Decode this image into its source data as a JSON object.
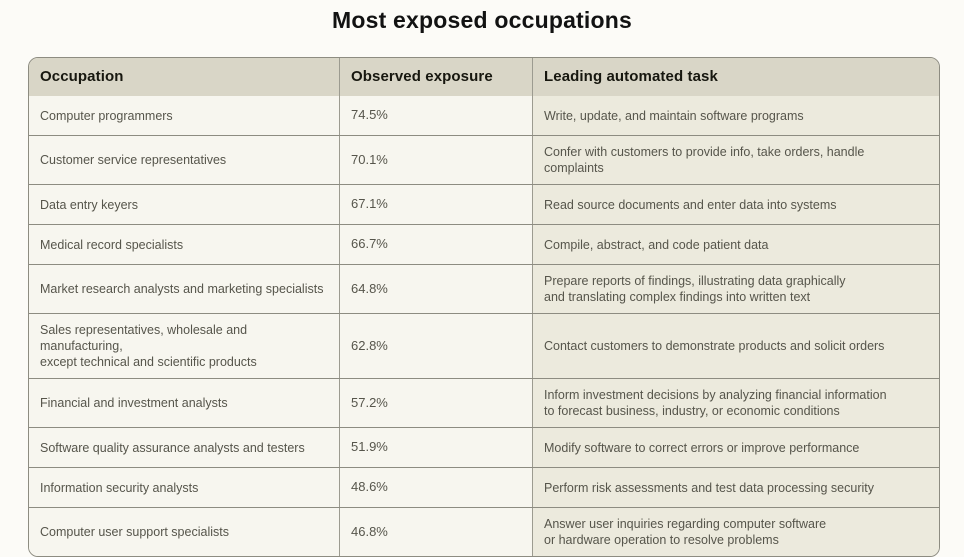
{
  "title": "Most exposed occupations",
  "colors": {
    "page_bg": "#fcfbf7",
    "header_bg": "#d9d6c7",
    "row_bg": "#f7f6ef",
    "task_column_bg": "#eceadd",
    "border": "#8d8c81",
    "body_text": "#56554b",
    "header_text": "#17170f"
  },
  "table": {
    "headers": {
      "occupation": "Occupation",
      "exposure": "Observed exposure",
      "task": "Leading automated task"
    },
    "rows": [
      {
        "occupation": "Computer programmers",
        "exposure": "74.5%",
        "task": "Write, update, and maintain software programs"
      },
      {
        "occupation": "Customer service representatives",
        "exposure": "70.1%",
        "task": "Confer with customers to provide info, take orders, handle complaints"
      },
      {
        "occupation": "Data entry keyers",
        "exposure": "67.1%",
        "task": "Read source documents and enter data into systems"
      },
      {
        "occupation": "Medical record specialists",
        "exposure": "66.7%",
        "task": "Compile, abstract, and code patient data"
      },
      {
        "occupation": "Market research analysts and marketing specialists",
        "exposure": "64.8%",
        "task": "Prepare reports of findings, illustrating data graphically\nand translating complex findings into written text"
      },
      {
        "occupation": "Sales representatives, wholesale and manufacturing,\nexcept technical and scientific products",
        "exposure": "62.8%",
        "task": "Contact customers to demonstrate products and solicit orders"
      },
      {
        "occupation": "Financial and investment analysts",
        "exposure": "57.2%",
        "task": "Inform investment decisions by analyzing financial information\nto forecast business, industry, or economic conditions"
      },
      {
        "occupation": "Software quality assurance analysts and testers",
        "exposure": "51.9%",
        "task": "Modify software to correct errors or improve performance"
      },
      {
        "occupation": "Information security analysts",
        "exposure": "48.6%",
        "task": "Perform risk assessments and test data processing security"
      },
      {
        "occupation": "Computer user support specialists",
        "exposure": "46.8%",
        "task": "Answer user inquiries regarding computer software\nor hardware operation to resolve problems"
      }
    ]
  },
  "chart_data": {
    "type": "table",
    "title": "Most exposed occupations",
    "columns": [
      "Occupation",
      "Observed exposure",
      "Leading automated task"
    ],
    "exposure_values_pct": [
      74.5,
      70.1,
      67.1,
      66.7,
      64.8,
      62.8,
      57.2,
      51.9,
      48.6,
      46.8
    ],
    "rows": [
      [
        "Computer programmers",
        "74.5%",
        "Write, update, and maintain software programs"
      ],
      [
        "Customer service representatives",
        "70.1%",
        "Confer with customers to provide info, take orders, handle complaints"
      ],
      [
        "Data entry keyers",
        "67.1%",
        "Read source documents and enter data into systems"
      ],
      [
        "Medical record specialists",
        "66.7%",
        "Compile, abstract, and code patient data"
      ],
      [
        "Market research analysts and marketing specialists",
        "64.8%",
        "Prepare reports of findings, illustrating data graphically and translating complex findings into written text"
      ],
      [
        "Sales representatives, wholesale and manufacturing, except technical and scientific products",
        "62.8%",
        "Contact customers to demonstrate products and solicit orders"
      ],
      [
        "Financial and investment analysts",
        "57.2%",
        "Inform investment decisions by analyzing financial information to forecast business, industry, or economic conditions"
      ],
      [
        "Software quality assurance analysts and testers",
        "51.9%",
        "Modify software to correct errors or improve performance"
      ],
      [
        "Information security analysts",
        "48.6%",
        "Perform risk assessments and test data processing security"
      ],
      [
        "Computer user support specialists",
        "46.8%",
        "Answer user inquiries regarding computer software or hardware operation to resolve problems"
      ]
    ]
  }
}
